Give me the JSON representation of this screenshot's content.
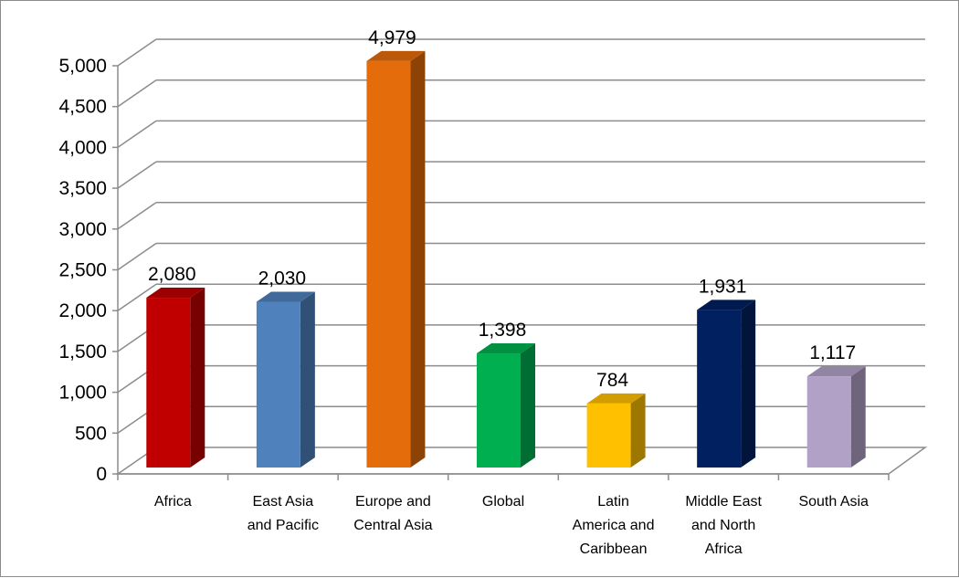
{
  "chart_data": {
    "type": "bar",
    "categories": [
      "Africa",
      "East Asia and Pacific",
      "Europe and Central Asia",
      "Global",
      "Latin America and Caribbean",
      "Middle East and North Africa",
      "South Asia"
    ],
    "category_lines": [
      [
        "Africa"
      ],
      [
        "East Asia",
        "and Pacific"
      ],
      [
        "Europe and",
        "Central Asia"
      ],
      [
        "Global"
      ],
      [
        "Latin",
        "America and",
        "Caribbean"
      ],
      [
        "Middle East",
        "and North",
        "Africa"
      ],
      [
        "South Asia"
      ]
    ],
    "values": [
      2080,
      2030,
      4979,
      1398,
      784,
      1931,
      1117
    ],
    "data_labels": [
      "2,080",
      "2,030",
      "4,979",
      "1,398",
      "784",
      "1,931",
      "1,117"
    ],
    "y_ticks": [
      0,
      500,
      1000,
      1500,
      2000,
      2500,
      3000,
      3500,
      4000,
      4500,
      5000
    ],
    "y_tick_labels": [
      "0",
      "500",
      "1,000",
      "1,500",
      "2,000",
      "2,500",
      "3,000",
      "3,500",
      "4,000",
      "4,500",
      "5,000"
    ],
    "ylim": [
      0,
      5000
    ],
    "title": "",
    "xlabel": "",
    "ylabel": "",
    "grid": true,
    "legend": "none",
    "style": "3d-column",
    "colors": [
      "#C00000",
      "#4F81BD",
      "#E46C0A",
      "#00B050",
      "#FFC000",
      "#002060",
      "#B2A1C7"
    ]
  }
}
